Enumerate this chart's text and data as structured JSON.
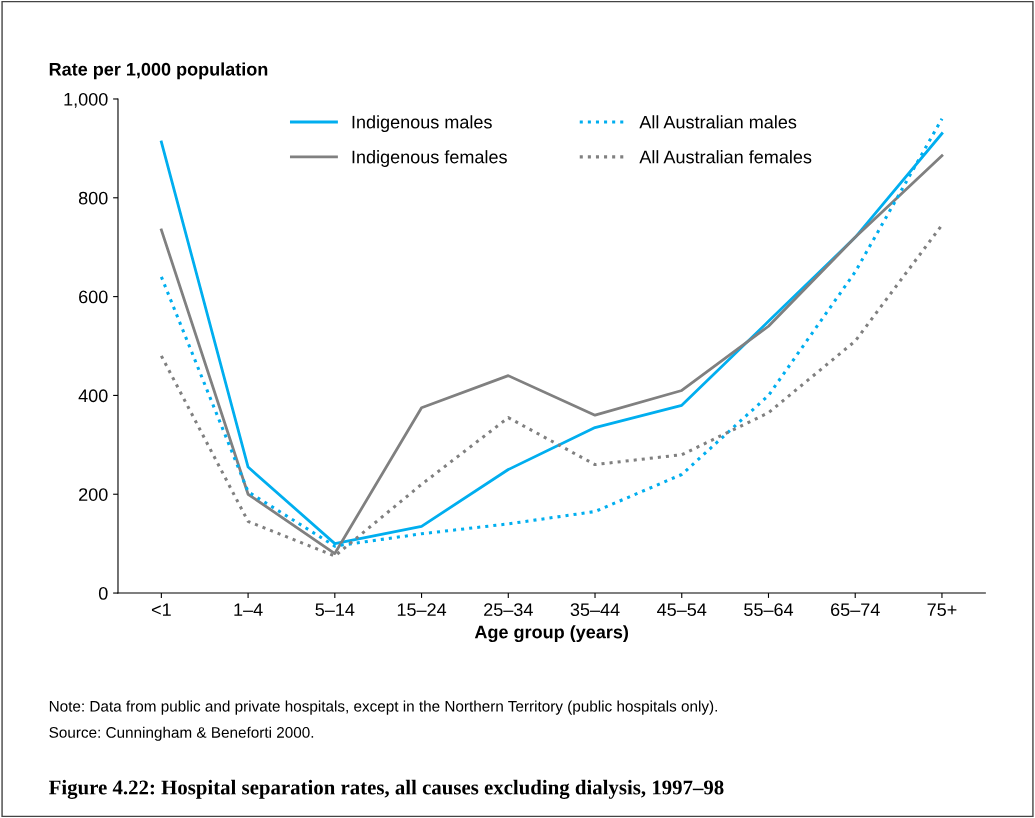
{
  "chart_data": {
    "type": "line",
    "title": "Figure 4.22: Hospital separation rates, all causes excluding dialysis, 1997–98",
    "xlabel": "Age group (years)",
    "ylabel": "Rate per 1,000 population",
    "categories": [
      "<1",
      "1–4",
      "5–14",
      "15–24",
      "25–34",
      "35–44",
      "45–54",
      "55–64",
      "65–74",
      "75+"
    ],
    "series": [
      {
        "name": "Indigenous males",
        "color": "#00aeef",
        "line_style": "solid",
        "values": [
          913,
          255,
          100,
          135,
          250,
          335,
          380,
          550,
          720,
          930
        ]
      },
      {
        "name": "Indigenous females",
        "color": "#808080",
        "line_style": "solid",
        "values": [
          735,
          200,
          80,
          375,
          440,
          360,
          410,
          540,
          720,
          885
        ]
      },
      {
        "name": "All Australian males",
        "color": "#00aeef",
        "line_style": "dotted",
        "values": [
          640,
          205,
          95,
          120,
          140,
          165,
          240,
          400,
          650,
          960
        ]
      },
      {
        "name": "All Australian females",
        "color": "#808080",
        "line_style": "dotted",
        "values": [
          480,
          145,
          75,
          220,
          355,
          260,
          280,
          365,
          510,
          745
        ]
      }
    ],
    "ylim": [
      0,
      1000
    ],
    "yticks": [
      0,
      200,
      400,
      600,
      800,
      {
        "value": 1000,
        "label": "1,000"
      }
    ],
    "grid": false,
    "legend": "top",
    "marker": "none",
    "annotations": [
      "Note: Data from public and private hospitals, except in the Northern Territory (public hospitals only).",
      "Source: Cunningham & Beneforti 2000."
    ]
  }
}
